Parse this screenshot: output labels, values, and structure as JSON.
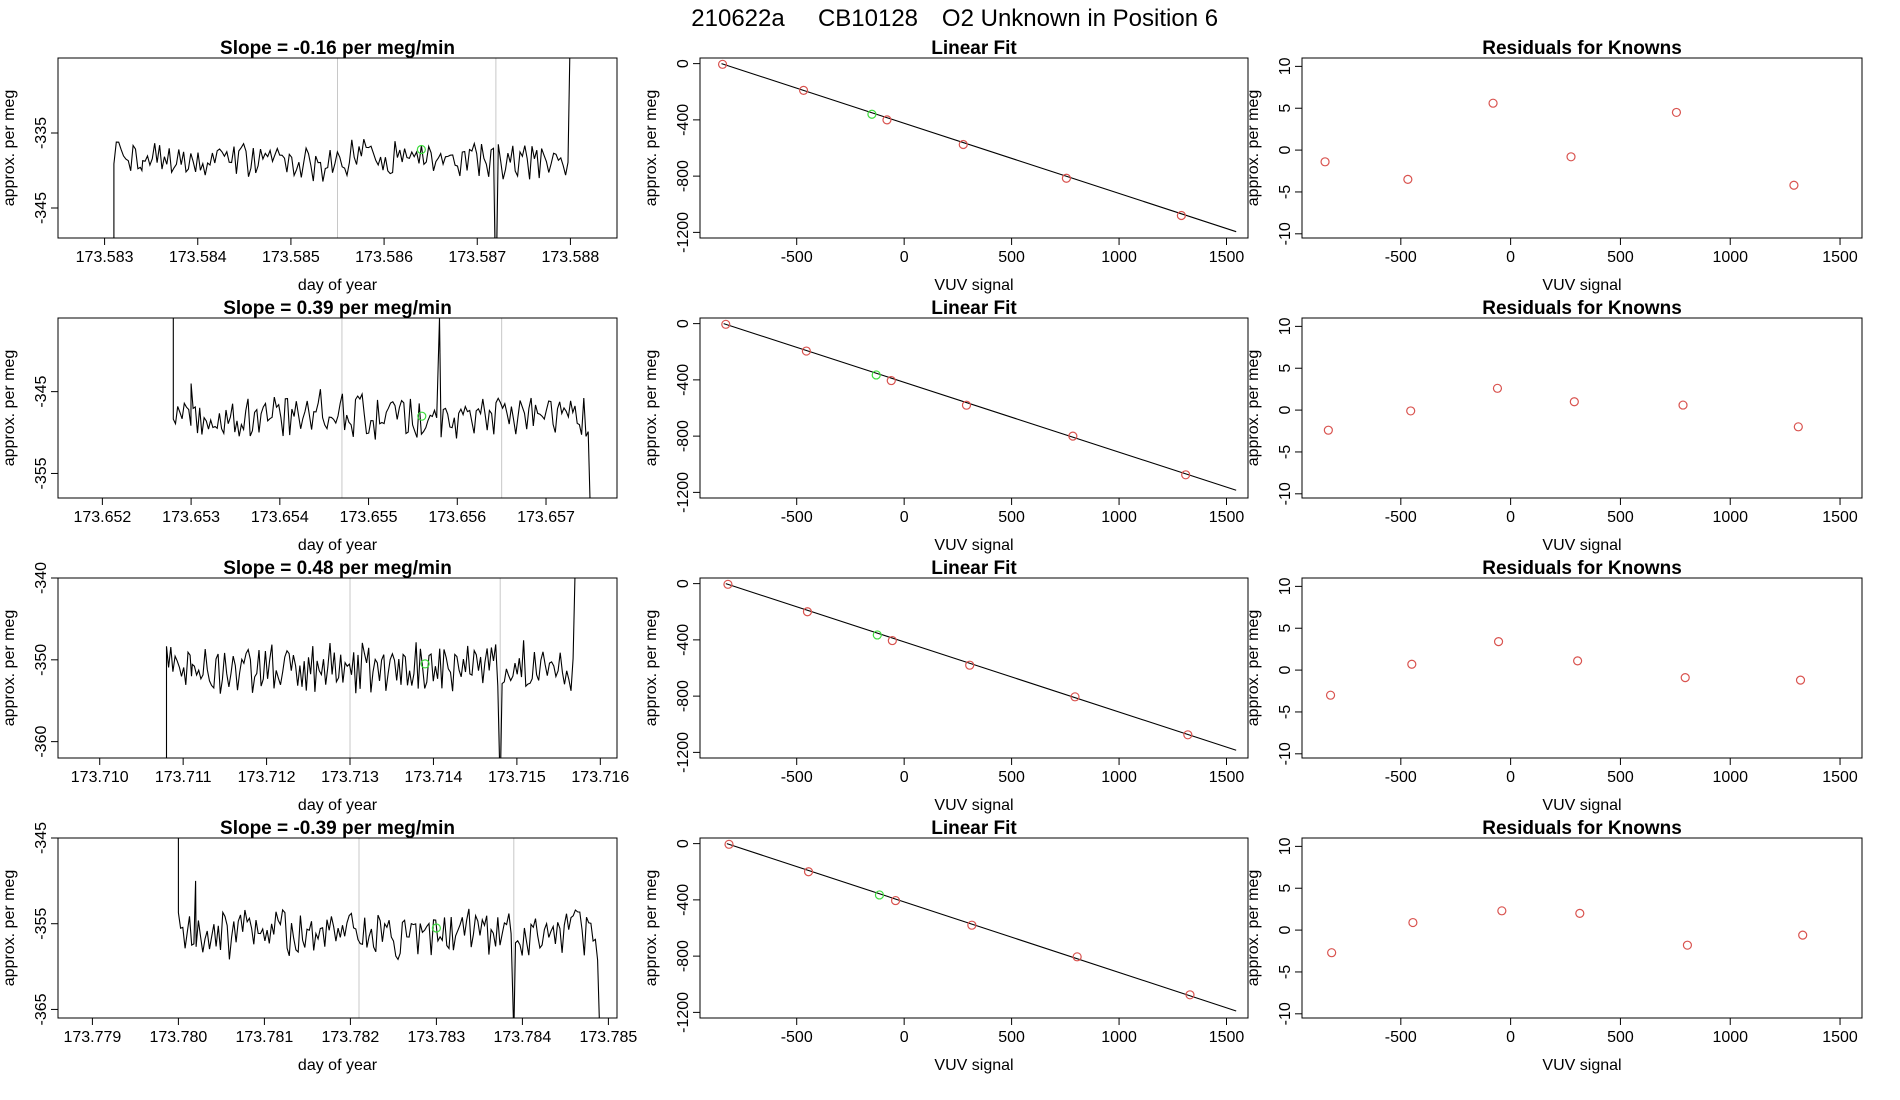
{
  "header": {
    "run_id": "210622a",
    "cylinder": "CB10128",
    "description": "O2 Unknown in Position  6"
  },
  "colors": {
    "known_points": "#d9534f",
    "unknown_point": "#3ddc3d",
    "series": "#000000",
    "marker_lines": "#c8c8c8"
  },
  "chart_data": [
    {
      "type": "line",
      "title": "Slope =  -0.16  per meg/min",
      "xlabel": "day of year",
      "ylabel": "approx. per meg",
      "xlim": [
        173.5825,
        173.5885
      ],
      "ylim": [
        -349,
        -325
      ],
      "xticks": [
        "173.583",
        "173.584",
        "173.585",
        "173.586",
        "173.587",
        "173.588"
      ],
      "yticks": [
        "-335",
        "-345"
      ],
      "vlines": [
        173.5855,
        173.5872
      ],
      "base": -338.6,
      "amp": 2.2,
      "seed": 1,
      "start": 173.5831,
      "end": 173.588,
      "rise": [
        [
          173.5831,
          -352
        ],
        [
          173.5834,
          -340
        ]
      ],
      "spikes": [
        [
          173.5872,
          -358
        ],
        [
          173.588,
          -320
        ]
      ],
      "unknown_point": [
        173.5864,
        -337.2
      ]
    },
    {
      "type": "line",
      "title": "Slope =  0.39  per meg/min",
      "xlabel": "day of year",
      "ylabel": "approx. per meg",
      "xlim": [
        173.6515,
        173.6578
      ],
      "ylim": [
        -358,
        -336
      ],
      "xticks": [
        "173.652",
        "173.653",
        "173.654",
        "173.655",
        "173.656",
        "173.657"
      ],
      "yticks": [
        "-345",
        "-355"
      ],
      "vlines": [
        173.6547,
        173.6565
      ],
      "base": -348.0,
      "amp": 2.4,
      "seed": 2,
      "start": 173.6528,
      "end": 173.6575,
      "rise": [
        [
          173.6528,
          -334
        ],
        [
          173.653,
          -344
        ]
      ],
      "spikes": [
        [
          173.6558,
          -336
        ],
        [
          173.6575,
          -360
        ]
      ],
      "unknown_point": [
        173.6556,
        -348.0
      ]
    },
    {
      "type": "line",
      "title": "Slope =  0.48  per meg/min",
      "xlabel": "day of year",
      "ylabel": "approx. per meg",
      "xlim": [
        173.7095,
        173.7162
      ],
      "ylim": [
        -362,
        -340
      ],
      "xticks": [
        "173.710",
        "173.711",
        "173.712",
        "173.713",
        "173.714",
        "173.715",
        "173.716"
      ],
      "yticks": [
        "-340",
        "-350",
        "-360"
      ],
      "vlines": [
        173.713,
        173.7148
      ],
      "base": -350.8,
      "amp": 2.6,
      "seed": 3,
      "start": 173.7108,
      "end": 173.7157,
      "rise": [
        [
          173.7108,
          -364
        ],
        [
          173.7111,
          -352
        ]
      ],
      "spikes": [
        [
          173.7148,
          -366
        ],
        [
          173.7157,
          -338
        ]
      ],
      "unknown_point": [
        173.7139,
        -350.5
      ]
    },
    {
      "type": "line",
      "title": "Slope =  -0.39  per meg/min",
      "xlabel": "day of year",
      "ylabel": "approx. per meg",
      "xlim": [
        173.7786,
        173.7851
      ],
      "ylim": [
        -366,
        -345
      ],
      "xticks": [
        "173.779",
        "173.780",
        "173.781",
        "173.782",
        "173.783",
        "173.784",
        "173.785"
      ],
      "yticks": [
        "-345",
        "-355",
        "-365"
      ],
      "vlines": [
        173.7821,
        173.7839
      ],
      "base": -356.2,
      "amp": 2.4,
      "seed": 4,
      "start": 173.78,
      "end": 173.7849,
      "rise": [
        [
          173.78,
          -344
        ],
        [
          173.7802,
          -350
        ]
      ],
      "spikes": [
        [
          173.7839,
          -368
        ],
        [
          173.7849,
          -368
        ]
      ],
      "unknown_point": [
        173.783,
        -355.5
      ]
    },
    {
      "type": "scatter",
      "title": "Linear Fit",
      "xlabel": "VUV signal",
      "ylabel": "approx. per meg",
      "xlim": [
        -950,
        1600
      ],
      "ylim": [
        -1240,
        40
      ],
      "xticks": [
        -500,
        0,
        500,
        1000,
        1500
      ],
      "yticks": [
        0,
        -400,
        -800,
        -1200
      ],
      "knowns": [
        [
          -845,
          -5
        ],
        [
          -468,
          -190
        ],
        [
          -80,
          -400
        ],
        [
          275,
          -575
        ],
        [
          755,
          -815
        ],
        [
          1290,
          -1080
        ]
      ],
      "unknown": [
        -150,
        -360
      ],
      "fit": [
        [
          -850,
          0
        ],
        [
          1545,
          -1195
        ]
      ]
    },
    {
      "type": "scatter",
      "title": "Linear Fit",
      "xlabel": "VUV signal",
      "ylabel": "approx. per meg",
      "xlim": [
        -950,
        1600
      ],
      "ylim": [
        -1240,
        40
      ],
      "xticks": [
        -500,
        0,
        500,
        1000,
        1500
      ],
      "yticks": [
        0,
        -400,
        -800,
        -1200
      ],
      "knowns": [
        [
          -830,
          -5
        ],
        [
          -455,
          -195
        ],
        [
          -60,
          -405
        ],
        [
          290,
          -580
        ],
        [
          785,
          -800
        ],
        [
          1310,
          -1075
        ]
      ],
      "unknown": [
        -130,
        -365
      ],
      "fit": [
        [
          -840,
          0
        ],
        [
          1545,
          -1185
        ]
      ]
    },
    {
      "type": "scatter",
      "title": "Linear Fit",
      "xlabel": "VUV signal",
      "ylabel": "approx. per meg",
      "xlim": [
        -950,
        1600
      ],
      "ylim": [
        -1240,
        40
      ],
      "xticks": [
        -500,
        0,
        500,
        1000,
        1500
      ],
      "yticks": [
        0,
        -400,
        -800,
        -1200
      ],
      "knowns": [
        [
          -820,
          -5
        ],
        [
          -450,
          -200
        ],
        [
          -55,
          -405
        ],
        [
          305,
          -580
        ],
        [
          795,
          -805
        ],
        [
          1320,
          -1075
        ]
      ],
      "unknown": [
        -125,
        -365
      ],
      "fit": [
        [
          -830,
          0
        ],
        [
          1545,
          -1185
        ]
      ]
    },
    {
      "type": "scatter",
      "title": "Linear Fit",
      "xlabel": "VUV signal",
      "ylabel": "approx. per meg",
      "xlim": [
        -950,
        1600
      ],
      "ylim": [
        -1240,
        40
      ],
      "xticks": [
        -500,
        0,
        500,
        1000,
        1500
      ],
      "yticks": [
        0,
        -400,
        -800,
        -1200
      ],
      "knowns": [
        [
          -815,
          -5
        ],
        [
          -445,
          -200
        ],
        [
          -40,
          -405
        ],
        [
          315,
          -580
        ],
        [
          805,
          -805
        ],
        [
          1330,
          -1075
        ]
      ],
      "unknown": [
        -115,
        -365
      ],
      "fit": [
        [
          -825,
          0
        ],
        [
          1545,
          -1190
        ]
      ]
    },
    {
      "type": "scatter",
      "title": "Residuals for Knowns",
      "xlabel": "VUV signal",
      "ylabel": "approx. per meg",
      "xlim": [
        -950,
        1600
      ],
      "ylim": [
        -10.5,
        11
      ],
      "xticks": [
        -500,
        0,
        500,
        1000,
        1500
      ],
      "yticks": [
        10,
        5,
        0,
        -5,
        -10
      ],
      "points": [
        [
          -845,
          -1.4
        ],
        [
          -468,
          -3.5
        ],
        [
          -80,
          5.6
        ],
        [
          275,
          -0.8
        ],
        [
          755,
          4.5
        ],
        [
          1290,
          -4.2
        ]
      ]
    },
    {
      "type": "scatter",
      "title": "Residuals for Knowns",
      "xlabel": "VUV signal",
      "ylabel": "approx. per meg",
      "xlim": [
        -950,
        1600
      ],
      "ylim": [
        -10.5,
        11
      ],
      "xticks": [
        -500,
        0,
        500,
        1000,
        1500
      ],
      "yticks": [
        10,
        5,
        0,
        -5,
        -10
      ],
      "points": [
        [
          -830,
          -2.4
        ],
        [
          -455,
          -0.1
        ],
        [
          -60,
          2.6
        ],
        [
          290,
          1.0
        ],
        [
          785,
          0.6
        ],
        [
          1310,
          -2.0
        ]
      ]
    },
    {
      "type": "scatter",
      "title": "Residuals for Knowns",
      "xlabel": "VUV signal",
      "ylabel": "approx. per meg",
      "xlim": [
        -950,
        1600
      ],
      "ylim": [
        -10.5,
        11
      ],
      "xticks": [
        -500,
        0,
        500,
        1000,
        1500
      ],
      "yticks": [
        10,
        5,
        0,
        -5,
        -10
      ],
      "points": [
        [
          -820,
          -3.0
        ],
        [
          -450,
          0.7
        ],
        [
          -55,
          3.4
        ],
        [
          305,
          1.1
        ],
        [
          795,
          -0.9
        ],
        [
          1320,
          -1.2
        ]
      ]
    },
    {
      "type": "scatter",
      "title": "Residuals for Knowns",
      "xlabel": "VUV signal",
      "ylabel": "approx. per meg",
      "xlim": [
        -950,
        1600
      ],
      "ylim": [
        -10.5,
        11
      ],
      "xticks": [
        -500,
        0,
        500,
        1000,
        1500
      ],
      "yticks": [
        10,
        5,
        0,
        -5,
        -10
      ],
      "points": [
        [
          -815,
          -2.7
        ],
        [
          -445,
          0.9
        ],
        [
          -40,
          2.3
        ],
        [
          315,
          2.0
        ],
        [
          805,
          -1.8
        ],
        [
          1330,
          -0.6
        ]
      ]
    }
  ]
}
